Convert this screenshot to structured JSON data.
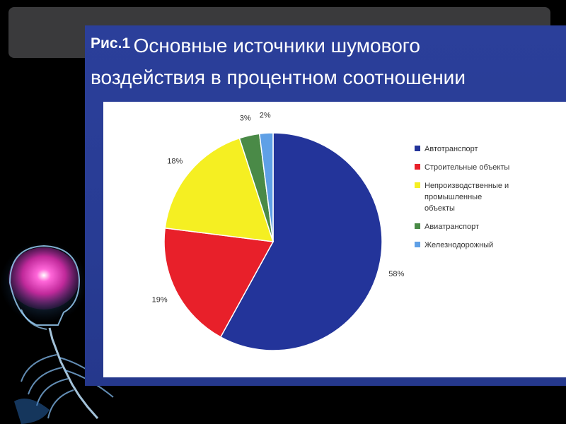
{
  "slide": {
    "figure_label": "Рис.1",
    "title_line1": "Основные источники шумового",
    "title_line2": "воздействия в процентном соотношении"
  },
  "chart_data": {
    "type": "pie",
    "title": "Основные источники шумового воздействия в процентном соотношении",
    "slices": [
      {
        "label": "Автотранспорт",
        "value": 58,
        "pct_text": "58%",
        "color": "#23349a"
      },
      {
        "label": "Строительные объекты",
        "value": 19,
        "pct_text": "19%",
        "color": "#e8202a"
      },
      {
        "label": "Непроизводственные и промышленные объекты",
        "label_lines": [
          "Непроизводственные и",
          "промышленные",
          "объекты"
        ],
        "value": 18,
        "pct_text": "18%",
        "color": "#f5ef22"
      },
      {
        "label": "Авиатранспорт",
        "value": 3,
        "pct_text": "3%",
        "color": "#4a8a47"
      },
      {
        "label": "Железнодорожный",
        "value": 2,
        "pct_text": "2%",
        "color": "#5fa0e6"
      }
    ],
    "legend_position": "right"
  },
  "colors": {
    "slide_background": "#2a3e98",
    "title_text": "#ffffff",
    "outer_background": "#000000",
    "top_bar": "#3a3a3c"
  },
  "decor": {
    "illustration": "glowing-brain-skeleton"
  }
}
